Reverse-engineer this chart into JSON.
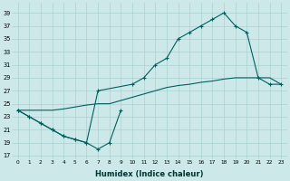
{
  "xlabel": "Humidex (Indice chaleur)",
  "bg_color": "#cce8e8",
  "grid_color": "#aad0d0",
  "line_color": "#006060",
  "xlim": [
    -0.5,
    23.5
  ],
  "ylim": [
    16.5,
    40.5
  ],
  "yticks": [
    17,
    19,
    21,
    23,
    25,
    27,
    29,
    31,
    33,
    35,
    37,
    39
  ],
  "xticks": [
    0,
    1,
    2,
    3,
    4,
    5,
    6,
    7,
    8,
    9,
    10,
    11,
    12,
    13,
    14,
    15,
    16,
    17,
    18,
    19,
    20,
    21,
    22,
    23
  ],
  "line_zigzag_x": [
    0,
    1,
    2,
    3,
    4,
    5,
    6,
    7,
    8,
    9
  ],
  "line_zigzag_y": [
    24,
    23,
    22,
    21,
    20,
    19.5,
    19,
    18,
    19,
    24
  ],
  "line_upper_x": [
    0,
    1,
    2,
    3,
    4,
    5,
    6,
    7,
    10,
    11,
    12,
    13,
    14,
    15,
    16,
    17,
    18,
    19,
    20,
    21,
    22,
    23
  ],
  "line_upper_y": [
    24,
    23,
    22,
    21,
    20,
    19.5,
    19,
    27,
    28,
    29,
    31,
    32,
    35,
    36,
    37,
    38,
    39,
    37,
    36,
    29,
    28,
    28
  ],
  "line_diagonal_x": [
    0,
    1,
    2,
    3,
    4,
    5,
    6,
    7,
    8,
    9,
    10,
    11,
    12,
    13,
    14,
    15,
    16,
    17,
    18,
    19,
    20,
    21,
    22,
    23
  ],
  "line_diagonal_y": [
    24,
    24,
    24,
    24,
    24.2,
    24.5,
    24.8,
    25,
    25,
    25.5,
    26,
    26.5,
    27,
    27.5,
    27.8,
    28,
    28.3,
    28.5,
    28.8,
    29,
    29,
    29,
    29,
    28
  ]
}
